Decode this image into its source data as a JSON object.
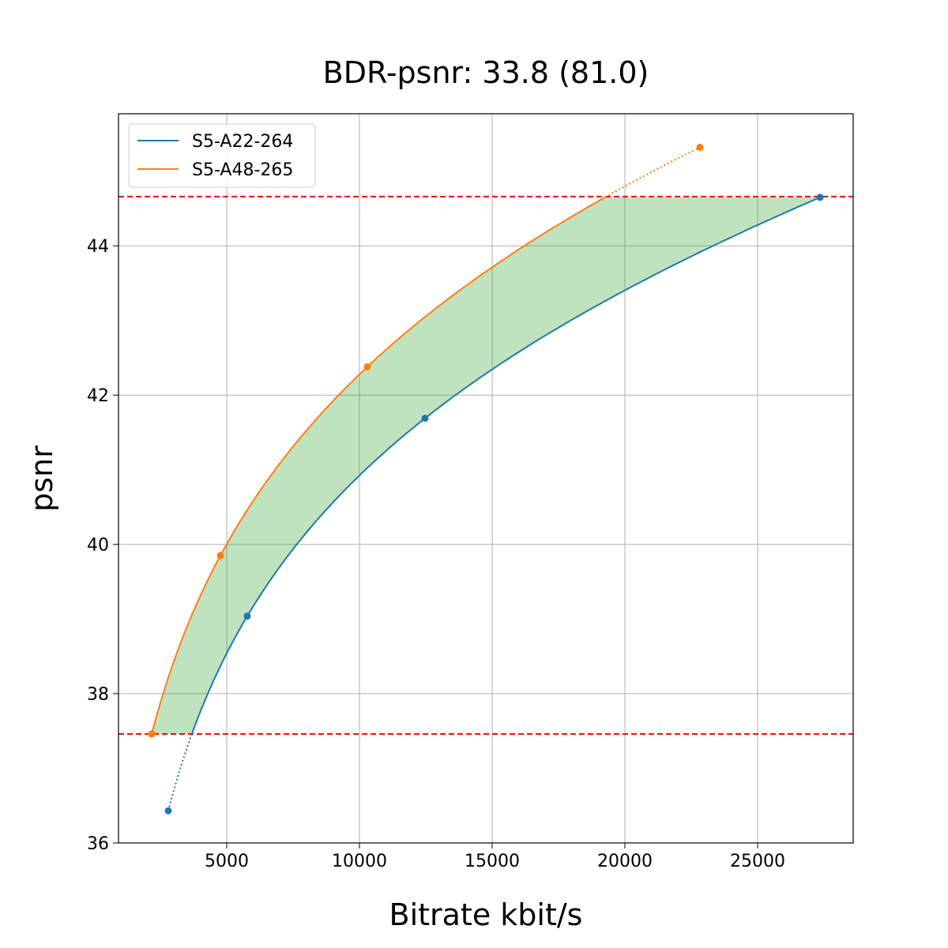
{
  "chart_data": {
    "type": "line",
    "title": "BDR-psnr: 33.8 (81.0)",
    "xlabel": "Bitrate kbit/s",
    "ylabel": "psnr",
    "xlim": [
      923,
      28600
    ],
    "ylim": [
      36,
      45.77
    ],
    "xticks": [
      5000,
      10000,
      15000,
      20000,
      25000
    ],
    "yticks": [
      36,
      38,
      40,
      42,
      44
    ],
    "grid": true,
    "legend_placement": "upper-left",
    "series": [
      {
        "name": "S5-A22-264",
        "color": "#1f77b4",
        "x": [
          2798,
          5774,
          12470,
          27350
        ],
        "y": [
          36.43,
          39.04,
          41.69,
          44.65
        ]
      },
      {
        "name": "S5-A48-265",
        "color": "#ff7f0e",
        "x": [
          2173,
          4762,
          10298,
          22827
        ],
        "y": [
          37.46,
          39.85,
          42.38,
          45.32
        ]
      }
    ],
    "reference_lines": {
      "y": [
        37.46,
        44.66
      ],
      "color": "#ff0000",
      "style": "dashed"
    },
    "fill_between_color": "#2ca02c"
  }
}
